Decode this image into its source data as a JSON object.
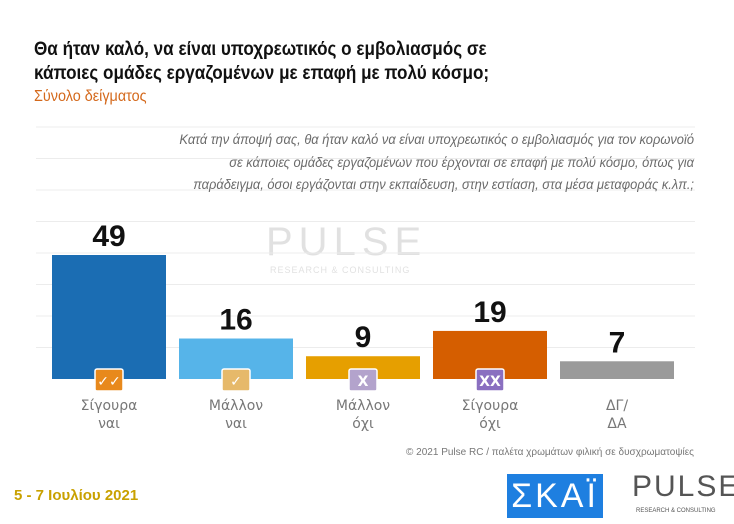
{
  "title_line1": "Θα ήταν καλό, να είναι υποχρεωτικός ο εμβολιασμός σε",
  "title_line2": "κάποιες ομάδες εργαζομένων με επαφή με πολύ κόσμο;",
  "subtitle": "Σύνολο δείγματος",
  "question": "Κατά την άποψή σας, θα ήταν καλό να είναι υποχρεωτικός ο εμβολιασμός για τον κορωνοϊό σε κάποιες ομάδες εργαζομένων που έρχονται σε επαφή με πολύ κόσμο, όπως για παράδειγμα, όσοι εργάζονται στην εκπαίδευση, στην εστίαση, στα μέσα μεταφοράς κ.λπ.;",
  "copyright": "© 2021 Pulse RC  /  παλέτα χρωμάτων φιλική σε δυσχρωματοψίες",
  "date": "5 - 7 Ιουλίου  2021",
  "logos": {
    "skai": "ΣΚΑΪ",
    "pulse": "PULSE",
    "pulse_sub": "RESEARCH & CONSULTING"
  },
  "chart_data": {
    "type": "bar",
    "categories": [
      [
        "Σίγουρα",
        "ναι"
      ],
      [
        "Μάλλον",
        "ναι"
      ],
      [
        "Μάλλον",
        "όχι"
      ],
      [
        "Σίγουρα",
        "όχι"
      ],
      [
        "ΔΓ/",
        "ΔΑ"
      ]
    ],
    "values": [
      49,
      16,
      9,
      19,
      7
    ],
    "colors": [
      "#1b6db3",
      "#56b4e9",
      "#e69f00",
      "#d55e00",
      "#9a9a9a"
    ],
    "icons": [
      {
        "name": "double-check-icon",
        "glyph": "✓✓",
        "color": "#e8891c"
      },
      {
        "name": "check-icon",
        "glyph": "✓",
        "color": "#e6b96a"
      },
      {
        "name": "x-icon",
        "glyph": "X",
        "color": "#b3a3cc"
      },
      {
        "name": "double-x-icon",
        "glyph": "XX",
        "color": "#8a6fc0"
      },
      null
    ],
    "ylim": [
      0,
      60
    ],
    "grid": true
  }
}
